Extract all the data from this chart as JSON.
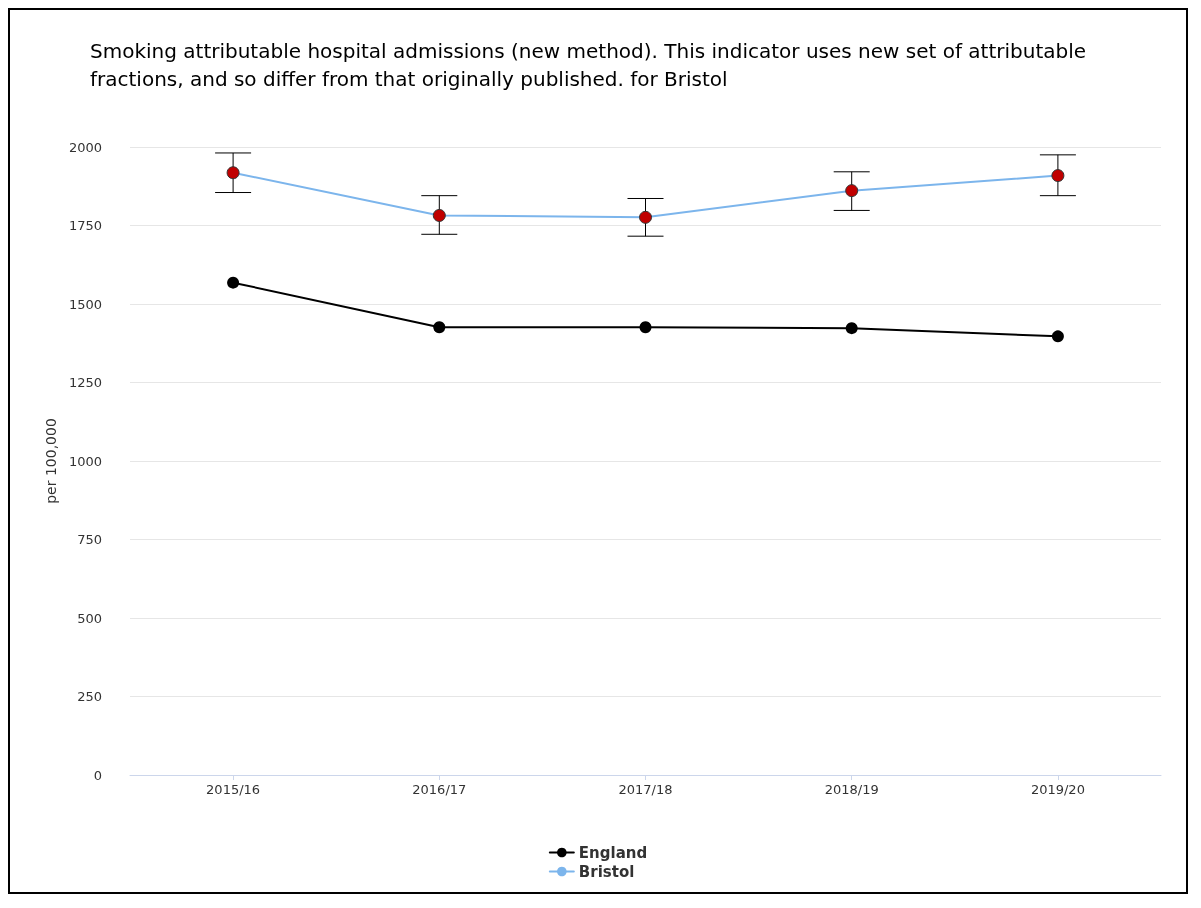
{
  "chart_data": {
    "type": "line",
    "title": "Smoking attributable hospital admissions (new method). This indicator uses new set of attributable fractions, and so differ from that originally published. for Bristol",
    "ylabel": "per 100,000",
    "categories": [
      "2015/16",
      "2016/17",
      "2017/18",
      "2018/19",
      "2019/20"
    ],
    "series": [
      {
        "name": "England",
        "color": "#000000",
        "values": [
          1568,
          1426,
          1426,
          1423,
          1397
        ]
      },
      {
        "name": "Bristol",
        "color": "#7cb5ec",
        "colors": [
          "#c00000",
          "#c00000",
          "#c00000",
          "#c00000",
          "#c00000"
        ],
        "values": [
          1918,
          1782,
          1776,
          1861,
          1909
        ],
        "errors": [
          [
            1855,
            1981
          ],
          [
            1722,
            1845
          ],
          [
            1716,
            1836
          ],
          [
            1798,
            1921
          ],
          [
            1845,
            1975
          ]
        ]
      }
    ],
    "ylim": [
      0,
      2000
    ],
    "yticks": [
      0,
      250,
      500,
      750,
      1000,
      1250,
      1500,
      1750,
      2000
    ],
    "grid": "y",
    "legend": "bottom",
    "marker": "circle",
    "line_style": "solid"
  }
}
